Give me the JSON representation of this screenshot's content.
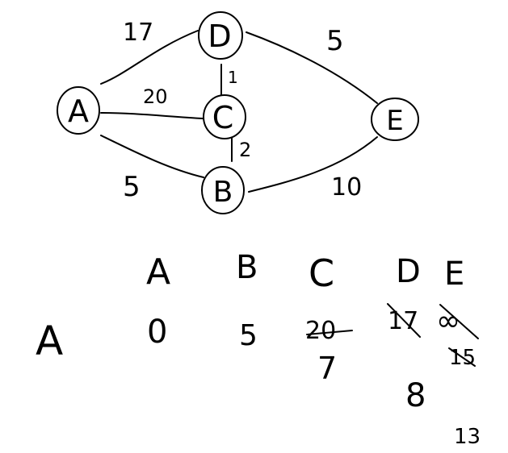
{
  "graph": {
    "nodes": [
      {
        "id": "A",
        "label": "A"
      },
      {
        "id": "B",
        "label": "B"
      },
      {
        "id": "C",
        "label": "C"
      },
      {
        "id": "D",
        "label": "D"
      },
      {
        "id": "E",
        "label": "E"
      }
    ],
    "edges": [
      {
        "from": "A",
        "to": "D",
        "weight": "17"
      },
      {
        "from": "A",
        "to": "C",
        "weight": "20"
      },
      {
        "from": "A",
        "to": "B",
        "weight": "5"
      },
      {
        "from": "D",
        "to": "C",
        "weight": "1"
      },
      {
        "from": "C",
        "to": "B",
        "weight": "2"
      },
      {
        "from": "D",
        "to": "E",
        "weight": "5"
      },
      {
        "from": "B",
        "to": "E",
        "weight": "10"
      }
    ]
  },
  "table": {
    "column_headers": [
      "A",
      "B",
      "C",
      "D",
      "E"
    ],
    "row_label": "A",
    "row_values": {
      "A": [
        "0"
      ],
      "B": [
        "5"
      ],
      "C": [
        "20",
        "7"
      ],
      "D": [
        "17",
        "8"
      ],
      "E": [
        "∞",
        "15",
        "13"
      ]
    },
    "crossed_out": {
      "C": [
        "20"
      ],
      "D": [
        "17"
      ],
      "E": [
        "∞",
        "15"
      ]
    }
  }
}
